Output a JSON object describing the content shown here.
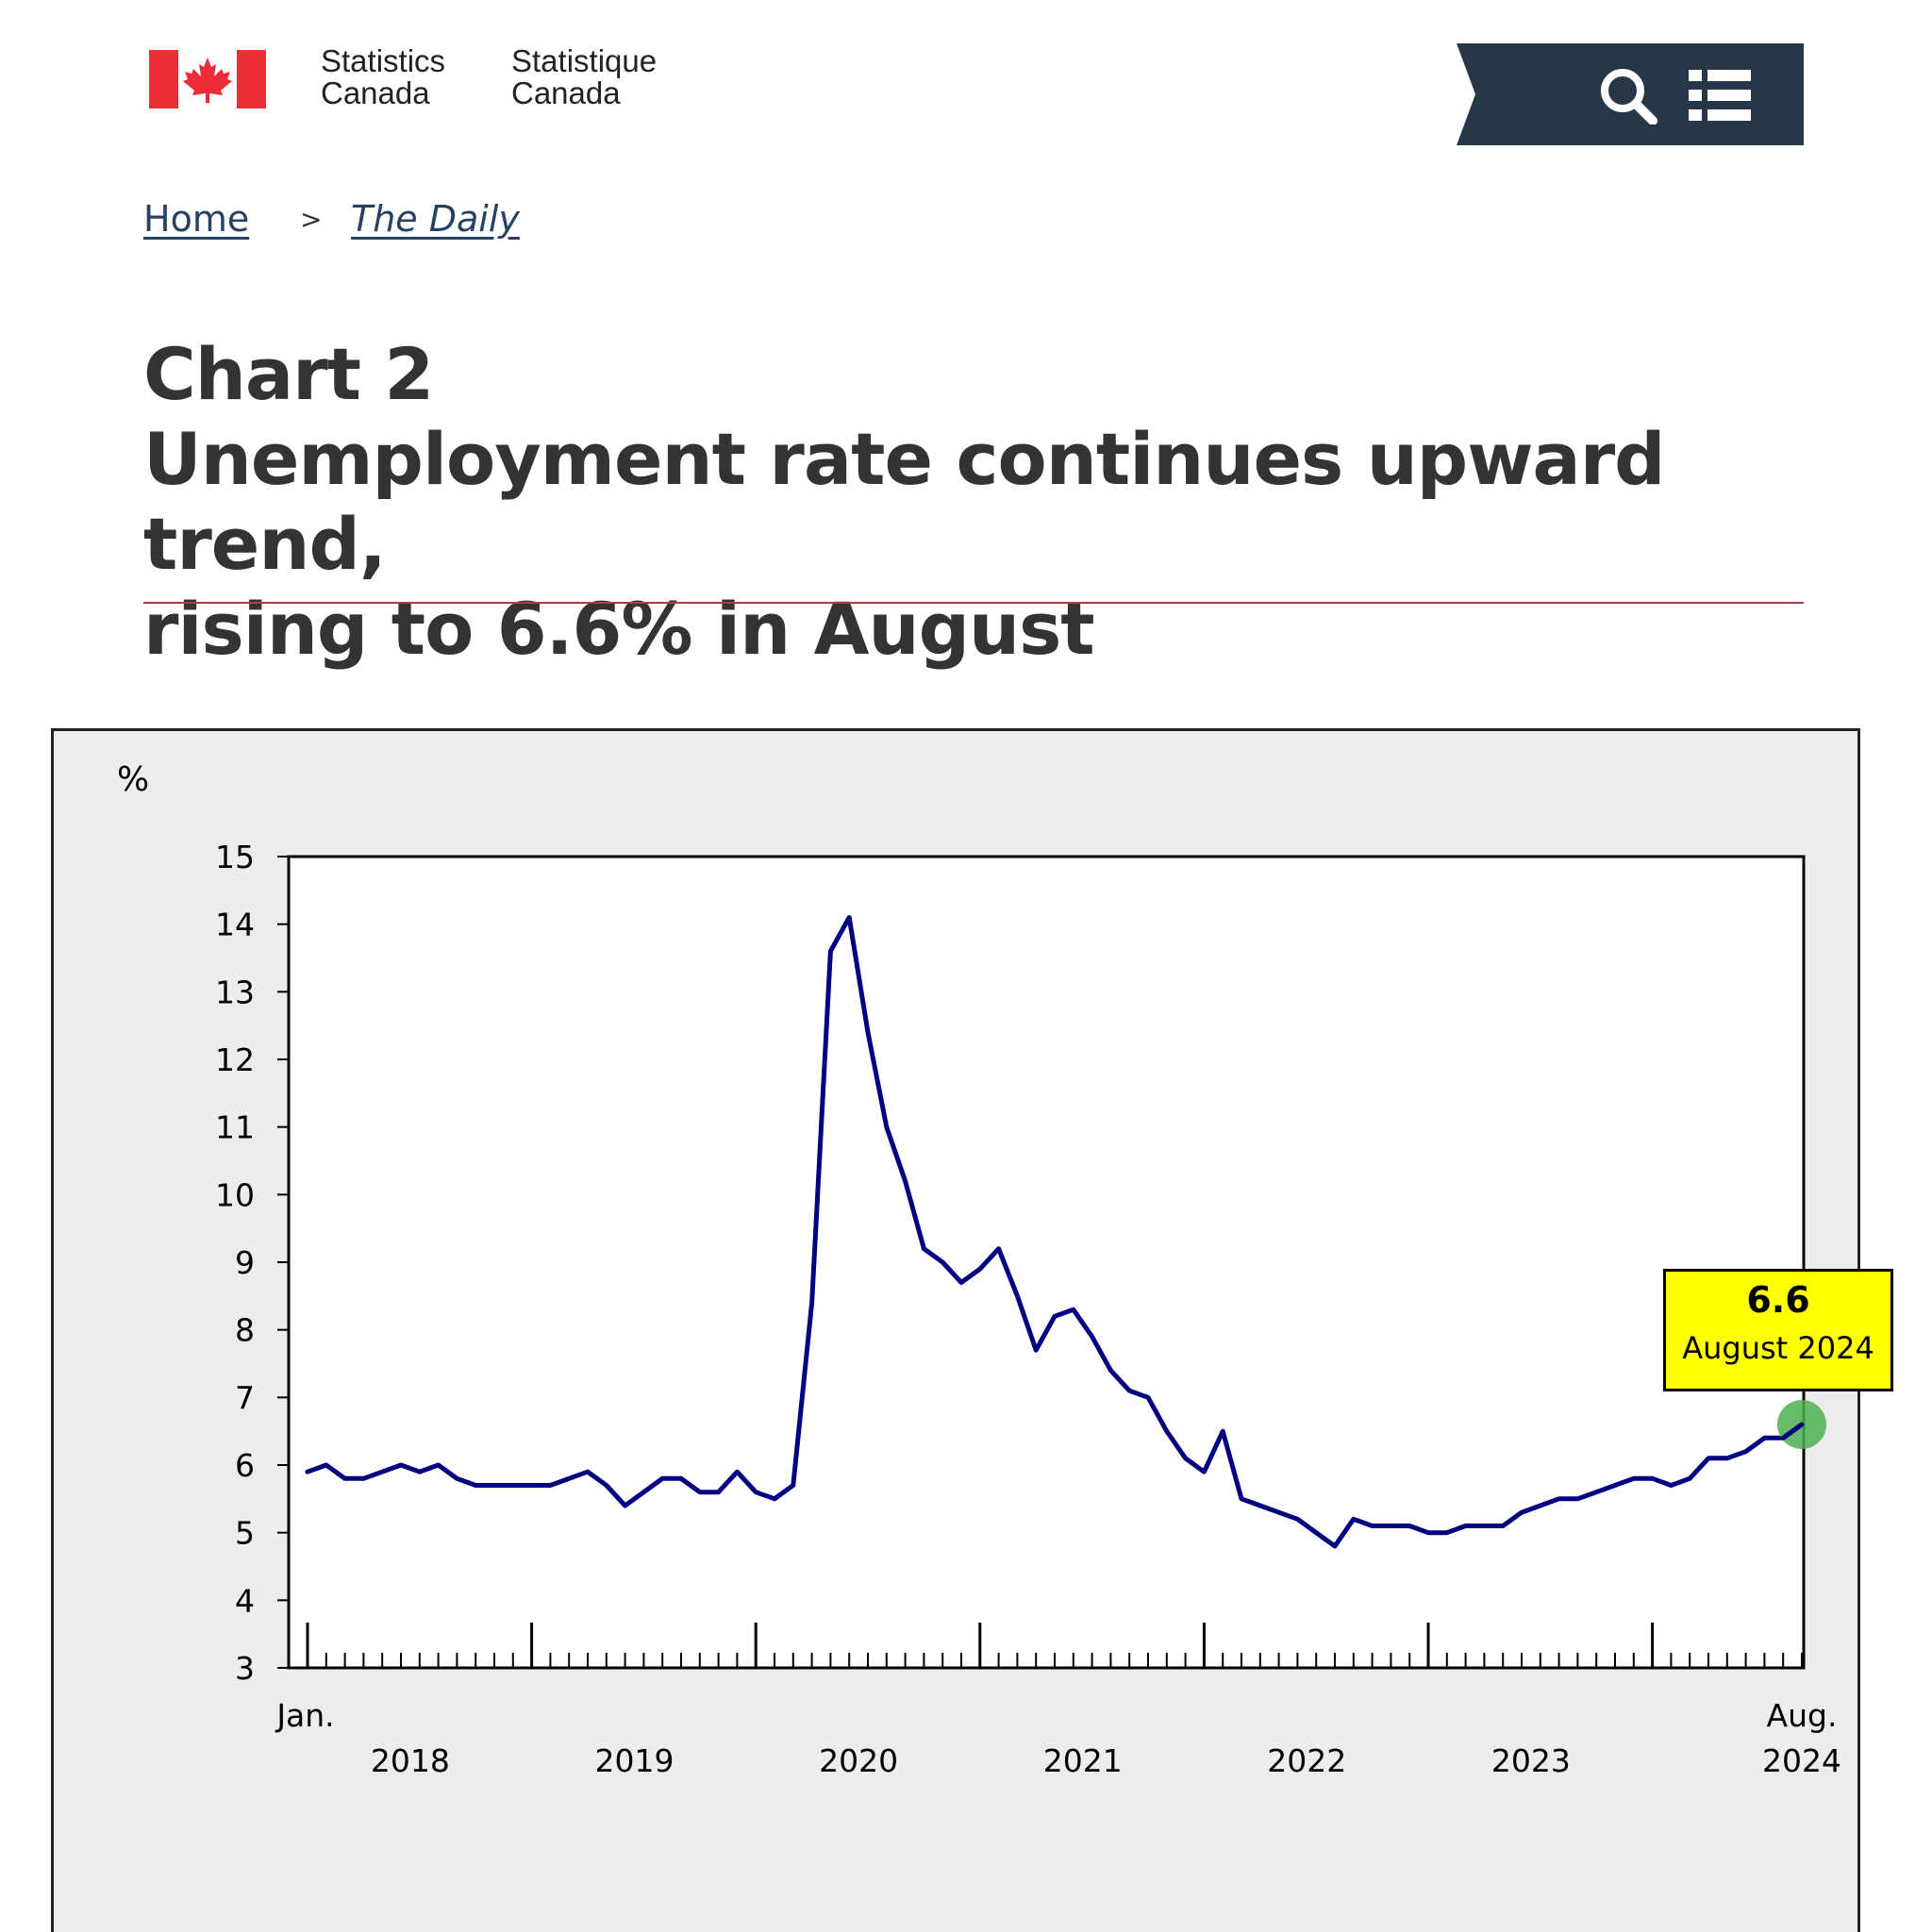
{
  "header": {
    "signature_en": [
      "Statistics",
      "Canada"
    ],
    "signature_fr": [
      "Statistique",
      "Canada"
    ]
  },
  "breadcrumb": {
    "home": "Home",
    "separator": ">",
    "current": "The Daily"
  },
  "title": {
    "chart_number": "Chart 2",
    "line1": "Unemployment rate continues upward trend,",
    "line2": "rising to 6.6% in August"
  },
  "colors": {
    "series": "#000080",
    "tooltip": "#ffff00",
    "marker": "#4caf50",
    "rule": "#af3c43",
    "header_dark": "#26374a"
  },
  "icons": {
    "search": "search-icon",
    "menu": "menu-icon",
    "flag": "canada-flag-icon"
  },
  "chart_data": {
    "type": "line",
    "title": "",
    "xlabel": "",
    "ylabel": "%",
    "ylim": [
      3,
      15
    ],
    "yticks": [
      3,
      4,
      5,
      6,
      7,
      8,
      9,
      10,
      11,
      12,
      13,
      14,
      15
    ],
    "x_start": "2018-01",
    "x_end": "2024-08",
    "x_edge_labels": {
      "start": "Jan.",
      "end": "Aug."
    },
    "year_labels": [
      "2018",
      "2019",
      "2020",
      "2021",
      "2022",
      "2023",
      "2024"
    ],
    "grid": false,
    "legend": "none",
    "series": [
      {
        "values": [
          5.9,
          6.0,
          5.8,
          5.8,
          5.9,
          6.0,
          5.9,
          6.0,
          5.8,
          5.7,
          5.7,
          5.7,
          5.7,
          5.7,
          5.8,
          5.9,
          5.7,
          5.4,
          5.6,
          5.8,
          5.8,
          5.6,
          5.6,
          5.9,
          5.6,
          5.5,
          5.7,
          8.4,
          13.6,
          14.1,
          12.4,
          11.0,
          10.2,
          9.2,
          9.0,
          8.7,
          8.9,
          9.2,
          8.5,
          7.7,
          8.2,
          8.3,
          7.9,
          7.4,
          7.1,
          7.0,
          6.5,
          6.1,
          5.9,
          6.5,
          5.5,
          5.4,
          5.3,
          5.2,
          5.0,
          4.8,
          5.2,
          5.1,
          5.1,
          5.1,
          5.0,
          5.0,
          5.1,
          5.1,
          5.1,
          5.3,
          5.4,
          5.5,
          5.5,
          5.6,
          5.7,
          5.8,
          5.8,
          5.7,
          5.8,
          6.1,
          6.1,
          6.2,
          6.4,
          6.4,
          6.6
        ]
      }
    ],
    "annotation": {
      "value": "6.6",
      "date": "August 2024"
    }
  }
}
